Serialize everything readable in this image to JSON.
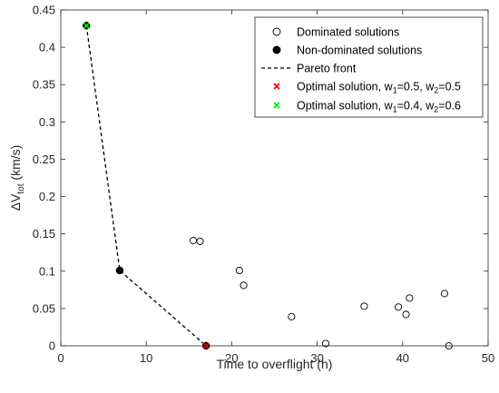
{
  "chart_data": {
    "type": "scatter",
    "xlabel": "Time to overflight (h)",
    "ylabel": {
      "base": "ΔV",
      "sub": "tot",
      "unit": " (km/s)"
    },
    "xlim": [
      0,
      50
    ],
    "ylim": [
      0,
      0.45
    ],
    "xticks": [
      0,
      10,
      20,
      30,
      40,
      50
    ],
    "yticks": [
      0,
      0.05,
      0.1,
      0.15,
      0.2,
      0.25,
      0.3,
      0.35,
      0.4,
      0.45
    ],
    "grid": false,
    "legend_position": "top-right",
    "series": [
      {
        "name": "Dominated solutions",
        "marker": "open-circle",
        "color": "#000000",
        "points": [
          {
            "x": 15.5,
            "y": 0.141
          },
          {
            "x": 16.3,
            "y": 0.14
          },
          {
            "x": 20.9,
            "y": 0.101
          },
          {
            "x": 21.4,
            "y": 0.081
          },
          {
            "x": 27.0,
            "y": 0.039
          },
          {
            "x": 31.0,
            "y": 0.003
          },
          {
            "x": 35.5,
            "y": 0.053
          },
          {
            "x": 39.5,
            "y": 0.052
          },
          {
            "x": 40.4,
            "y": 0.042
          },
          {
            "x": 40.8,
            "y": 0.064
          },
          {
            "x": 44.9,
            "y": 0.07
          },
          {
            "x": 45.4,
            "y": 0.0
          }
        ]
      },
      {
        "name": "Non-dominated solutions",
        "marker": "filled-circle",
        "color": "#000000",
        "points": [
          {
            "x": 3.0,
            "y": 0.429
          },
          {
            "x": 6.9,
            "y": 0.101
          },
          {
            "x": 17.0,
            "y": 0.0
          }
        ]
      },
      {
        "name": "Pareto front",
        "marker": "dashed-line",
        "color": "#000000",
        "points": [
          {
            "x": 3.0,
            "y": 0.429
          },
          {
            "x": 6.9,
            "y": 0.101
          },
          {
            "x": 17.0,
            "y": 0.0
          }
        ]
      },
      {
        "name": "Optimal solution, w1=0.5, w2=0.5",
        "legend_parts": {
          "a": "Optimal solution, w",
          "s1": "1",
          "b": "=0.5, w",
          "s2": "2",
          "c": "=0.5"
        },
        "marker": "x",
        "color": "#ff0000",
        "points": [
          {
            "x": 17.0,
            "y": 0.0
          }
        ]
      },
      {
        "name": "Optimal solution, w1=0.4, w2=0.6",
        "legend_parts": {
          "a": "Optimal solution, w",
          "s1": "1",
          "b": "=0.4, w",
          "s2": "2",
          "c": "=0.6"
        },
        "marker": "x",
        "color": "#00ee00",
        "points": [
          {
            "x": 3.0,
            "y": 0.429
          }
        ]
      }
    ]
  }
}
